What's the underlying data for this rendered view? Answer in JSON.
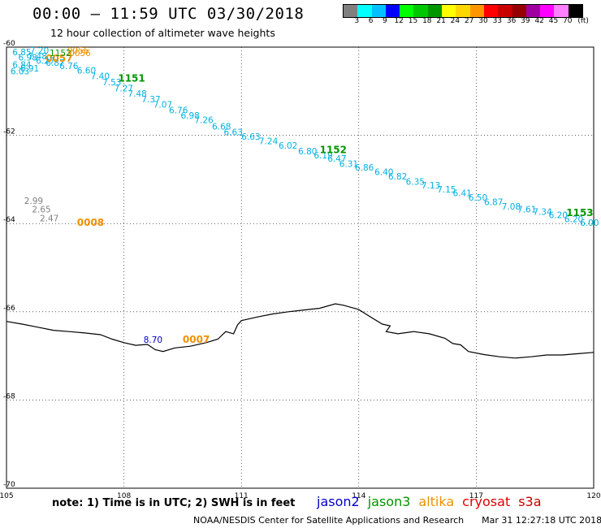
{
  "header": {
    "title": "00:00 – 11:59 UTC 03/30/2018",
    "subtitle": "12 hour collection of altimeter wave heights"
  },
  "colorbar": {
    "colors": [
      "#808080",
      "#00ffff",
      "#00c0ff",
      "#0000ff",
      "#00ff00",
      "#00c800",
      "#009600",
      "#ffff00",
      "#ffd700",
      "#ff9600",
      "#ff0000",
      "#c80000",
      "#960000",
      "#a000a0",
      "#ff00ff",
      "#ff80ff",
      "#000000"
    ],
    "labels": [
      "3",
      "6",
      "9",
      "12",
      "15",
      "18",
      "21",
      "24",
      "27",
      "30",
      "33",
      "36",
      "39",
      "42",
      "45",
      "70",
      "(ft)"
    ],
    "label_positions": [
      0,
      1,
      2,
      3,
      4,
      5,
      6,
      7,
      8,
      9,
      10,
      11,
      12,
      13,
      14,
      15,
      16
    ]
  },
  "map": {
    "lon_range": [
      105,
      120
    ],
    "lat_range": [
      -70,
      -60
    ],
    "x_ticks": [
      "105",
      "108",
      "111",
      "114",
      "117",
      "120"
    ],
    "y_ticks": [
      "-60",
      "-62",
      "-64",
      "-66",
      "-68",
      "-70"
    ],
    "coastline": [
      [
        105.0,
        -66.22
      ],
      [
        105.4,
        -66.28
      ],
      [
        105.8,
        -66.35
      ],
      [
        106.2,
        -66.42
      ],
      [
        106.6,
        -66.45
      ],
      [
        107.0,
        -66.48
      ],
      [
        107.4,
        -66.52
      ],
      [
        107.7,
        -66.62
      ],
      [
        108.0,
        -66.7
      ],
      [
        108.3,
        -66.76
      ],
      [
        108.6,
        -66.74
      ],
      [
        108.8,
        -66.86
      ],
      [
        109.0,
        -66.9
      ],
      [
        109.3,
        -66.82
      ],
      [
        109.7,
        -66.78
      ],
      [
        110.1,
        -66.7
      ],
      [
        110.4,
        -66.62
      ],
      [
        110.6,
        -66.45
      ],
      [
        110.8,
        -66.5
      ],
      [
        110.9,
        -66.3
      ],
      [
        111.0,
        -66.2
      ],
      [
        111.4,
        -66.12
      ],
      [
        111.8,
        -66.05
      ],
      [
        112.2,
        -66.0
      ],
      [
        112.6,
        -65.96
      ],
      [
        113.0,
        -65.92
      ],
      [
        113.4,
        -65.82
      ],
      [
        113.6,
        -65.85
      ],
      [
        114.0,
        -65.95
      ],
      [
        114.3,
        -66.12
      ],
      [
        114.6,
        -66.28
      ],
      [
        114.8,
        -66.32
      ],
      [
        114.7,
        -66.45
      ],
      [
        115.0,
        -66.5
      ],
      [
        115.4,
        -66.45
      ],
      [
        115.8,
        -66.5
      ],
      [
        116.2,
        -66.6
      ],
      [
        116.4,
        -66.72
      ],
      [
        116.6,
        -66.75
      ],
      [
        116.8,
        -66.9
      ],
      [
        117.2,
        -66.97
      ],
      [
        117.6,
        -67.02
      ],
      [
        118.0,
        -67.05
      ],
      [
        118.4,
        -67.02
      ],
      [
        118.8,
        -66.98
      ],
      [
        119.2,
        -66.98
      ],
      [
        119.6,
        -66.95
      ],
      [
        120.0,
        -66.92
      ]
    ],
    "passes": [
      {
        "id": "1151",
        "id_lon": 107.85,
        "id_lat": -60.78,
        "id_color": "#009600",
        "color": "#00b0e0",
        "points": [
          [
            "6.85",
            105.15,
            -60.18
          ],
          [
            "6.98",
            105.3,
            -60.3
          ],
          [
            "6.84",
            105.15,
            -60.47
          ],
          [
            "6.03",
            105.1,
            -60.62
          ],
          [
            "6.87",
            106.0,
            -60.42
          ],
          [
            "6.76",
            106.35,
            -60.5
          ],
          [
            "6.60",
            106.8,
            -60.6
          ],
          [
            "7.40",
            107.15,
            -60.73
          ],
          [
            "7.53",
            107.45,
            -60.87
          ],
          [
            "7.27",
            107.75,
            -61.0
          ],
          [
            "7.48",
            108.1,
            -61.12
          ],
          [
            "7.37",
            108.45,
            -61.25
          ],
          [
            "7.07",
            108.75,
            -61.37
          ],
          [
            "6.76",
            109.15,
            -61.5
          ],
          [
            "6.98",
            109.45,
            -61.62
          ],
          [
            "7.26",
            109.8,
            -61.72
          ],
          [
            "6.68",
            110.25,
            -61.87
          ],
          [
            "6.63",
            110.55,
            -62.0
          ]
        ]
      },
      {
        "id": "1152",
        "id_lon": 113.0,
        "id_lat": -62.4,
        "id_color": "#009600",
        "color": "#00b0e0",
        "points": [
          [
            "6.63",
            111.0,
            -62.1
          ],
          [
            "7.24",
            111.45,
            -62.2
          ],
          [
            "6.02",
            111.95,
            -62.3
          ],
          [
            "6.80",
            112.45,
            -62.43
          ],
          [
            "6.19",
            112.85,
            -62.52
          ],
          [
            "6.47",
            113.2,
            -62.6
          ],
          [
            "6.31",
            113.5,
            -62.72
          ],
          [
            "6.86",
            113.9,
            -62.8
          ],
          [
            "6.40",
            114.4,
            -62.9
          ],
          [
            "6.82",
            114.75,
            -63.0
          ],
          [
            "6.35",
            115.2,
            -63.12
          ],
          [
            "7.13",
            115.6,
            -63.2
          ],
          [
            "7.15",
            116.0,
            -63.3
          ],
          [
            "6.41",
            116.4,
            -63.38
          ],
          [
            "6.50",
            116.8,
            -63.48
          ],
          [
            "6.87",
            117.2,
            -63.58
          ],
          [
            "7.08",
            117.65,
            -63.68
          ],
          [
            "7.61",
            118.05,
            -63.75
          ],
          [
            "7.34",
            118.45,
            -63.8
          ]
        ]
      },
      {
        "id": "1153",
        "id_lon": 119.3,
        "id_lat": -63.83,
        "id_color": "#009600",
        "color": "#00b0e0",
        "points": [
          [
            "6.20",
            118.85,
            -63.88
          ],
          [
            "6.20",
            119.25,
            -63.97
          ],
          [
            "6.00",
            119.65,
            -64.05
          ]
        ]
      },
      {
        "id": "0057",
        "id_lon": 106.0,
        "id_lat": -60.33,
        "id_color": "#f09000",
        "color": "#f09000",
        "points": [
          [
            "0056",
            106.55,
            -60.15
          ],
          [
            "0056",
            106.6,
            -60.2
          ]
        ]
      },
      {
        "id": "0008",
        "id_lon": 106.8,
        "id_lat": -64.05,
        "id_color": "#f09000",
        "color": "#808080",
        "points": [
          [
            "2.99",
            105.45,
            -63.55
          ],
          [
            "2.65",
            105.65,
            -63.75
          ],
          [
            "2.47",
            105.85,
            -63.95
          ]
        ]
      },
      {
        "id": "0007",
        "id_lon": 109.5,
        "id_lat": -66.7,
        "id_color": "#f09000",
        "color": "#0000c8",
        "points": [
          [
            "8.70",
            108.5,
            -66.7
          ]
        ]
      }
    ],
    "extra_labels": [
      {
        "text": "7.20",
        "lon": 105.6,
        "lat": -60.15,
        "color": "#00b0e0"
      },
      {
        "text": "7.48",
        "lon": 105.55,
        "lat": -60.28,
        "color": "#00b0e0"
      },
      {
        "text": "6.27",
        "lon": 105.75,
        "lat": -60.38,
        "color": "#00b0e0"
      },
      {
        "text": "6.91",
        "lon": 105.35,
        "lat": -60.55,
        "color": "#00b0e0"
      },
      {
        "text": "1152",
        "lon": 106.1,
        "lat": -60.2,
        "color": "#009600"
      }
    ]
  },
  "footer": {
    "note": "note: 1) Time is in UTC; 2) SWH is in feet",
    "satellites": [
      {
        "name": "jason2",
        "color": "#0000c8"
      },
      {
        "name": "jason3",
        "color": "#009600"
      },
      {
        "name": "altika",
        "color": "#f09000"
      },
      {
        "name": "cryosat",
        "color": "#e00000"
      },
      {
        "name": "s3a",
        "color": "#c00000"
      }
    ],
    "credit": "NOAA/NESDIS Center for Satellite Applications and Research",
    "timestamp": "Mar 31 12:27:18 UTC 2018"
  }
}
